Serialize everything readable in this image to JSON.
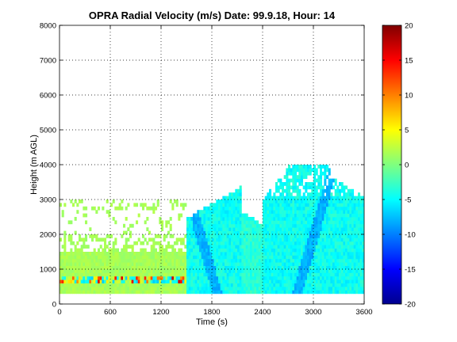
{
  "chart_data": {
    "type": "heatmap",
    "title": "OPRA Radial Velocity (m/s)  Date: 99.9.18, Hour: 14",
    "xlabel": "Time (s)",
    "ylabel": "Height (m AGL)",
    "xlim": [
      0,
      3600
    ],
    "ylim": [
      0,
      8000
    ],
    "xticks": [
      "0",
      "600",
      "1200",
      "1800",
      "2400",
      "3000",
      "3600"
    ],
    "yticks": [
      "0",
      "1000",
      "2000",
      "3000",
      "4000",
      "5000",
      "6000",
      "7000",
      "8000"
    ],
    "grid": true,
    "colorbar": {
      "min": -20,
      "max": 20,
      "ticks": [
        "20",
        "15",
        "10",
        "5",
        "0",
        "-5",
        "-10",
        "-15",
        "-20"
      ],
      "colormap": "jet"
    },
    "regions": [
      {
        "time": [
          0,
          1480
        ],
        "height": [
          300,
          1500
        ],
        "velocity_approx": 2
      },
      {
        "time": [
          0,
          1480
        ],
        "height": [
          1500,
          3000
        ],
        "velocity_approx": 2,
        "coverage": "sparse"
      },
      {
        "time": [
          0,
          1480
        ],
        "height": [
          600,
          720
        ],
        "velocity_approx": [
          -5,
          16
        ],
        "note": "mixed band"
      },
      {
        "time": [
          1480,
          2150
        ],
        "height": [
          300,
          3500
        ],
        "velocity_approx": -5
      },
      {
        "time": [
          2150,
          2400
        ],
        "height": [
          300,
          2600
        ],
        "velocity_approx": -4
      },
      {
        "time": [
          2400,
          3580
        ],
        "height": [
          300,
          4000
        ],
        "velocity_approx": -5
      }
    ]
  }
}
